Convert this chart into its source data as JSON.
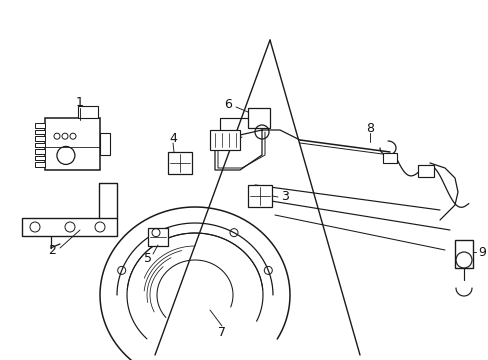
{
  "background_color": "#ffffff",
  "line_color": "#1a1a1a",
  "label_color": "#111111",
  "fig_width": 4.89,
  "fig_height": 3.6,
  "dpi": 100
}
